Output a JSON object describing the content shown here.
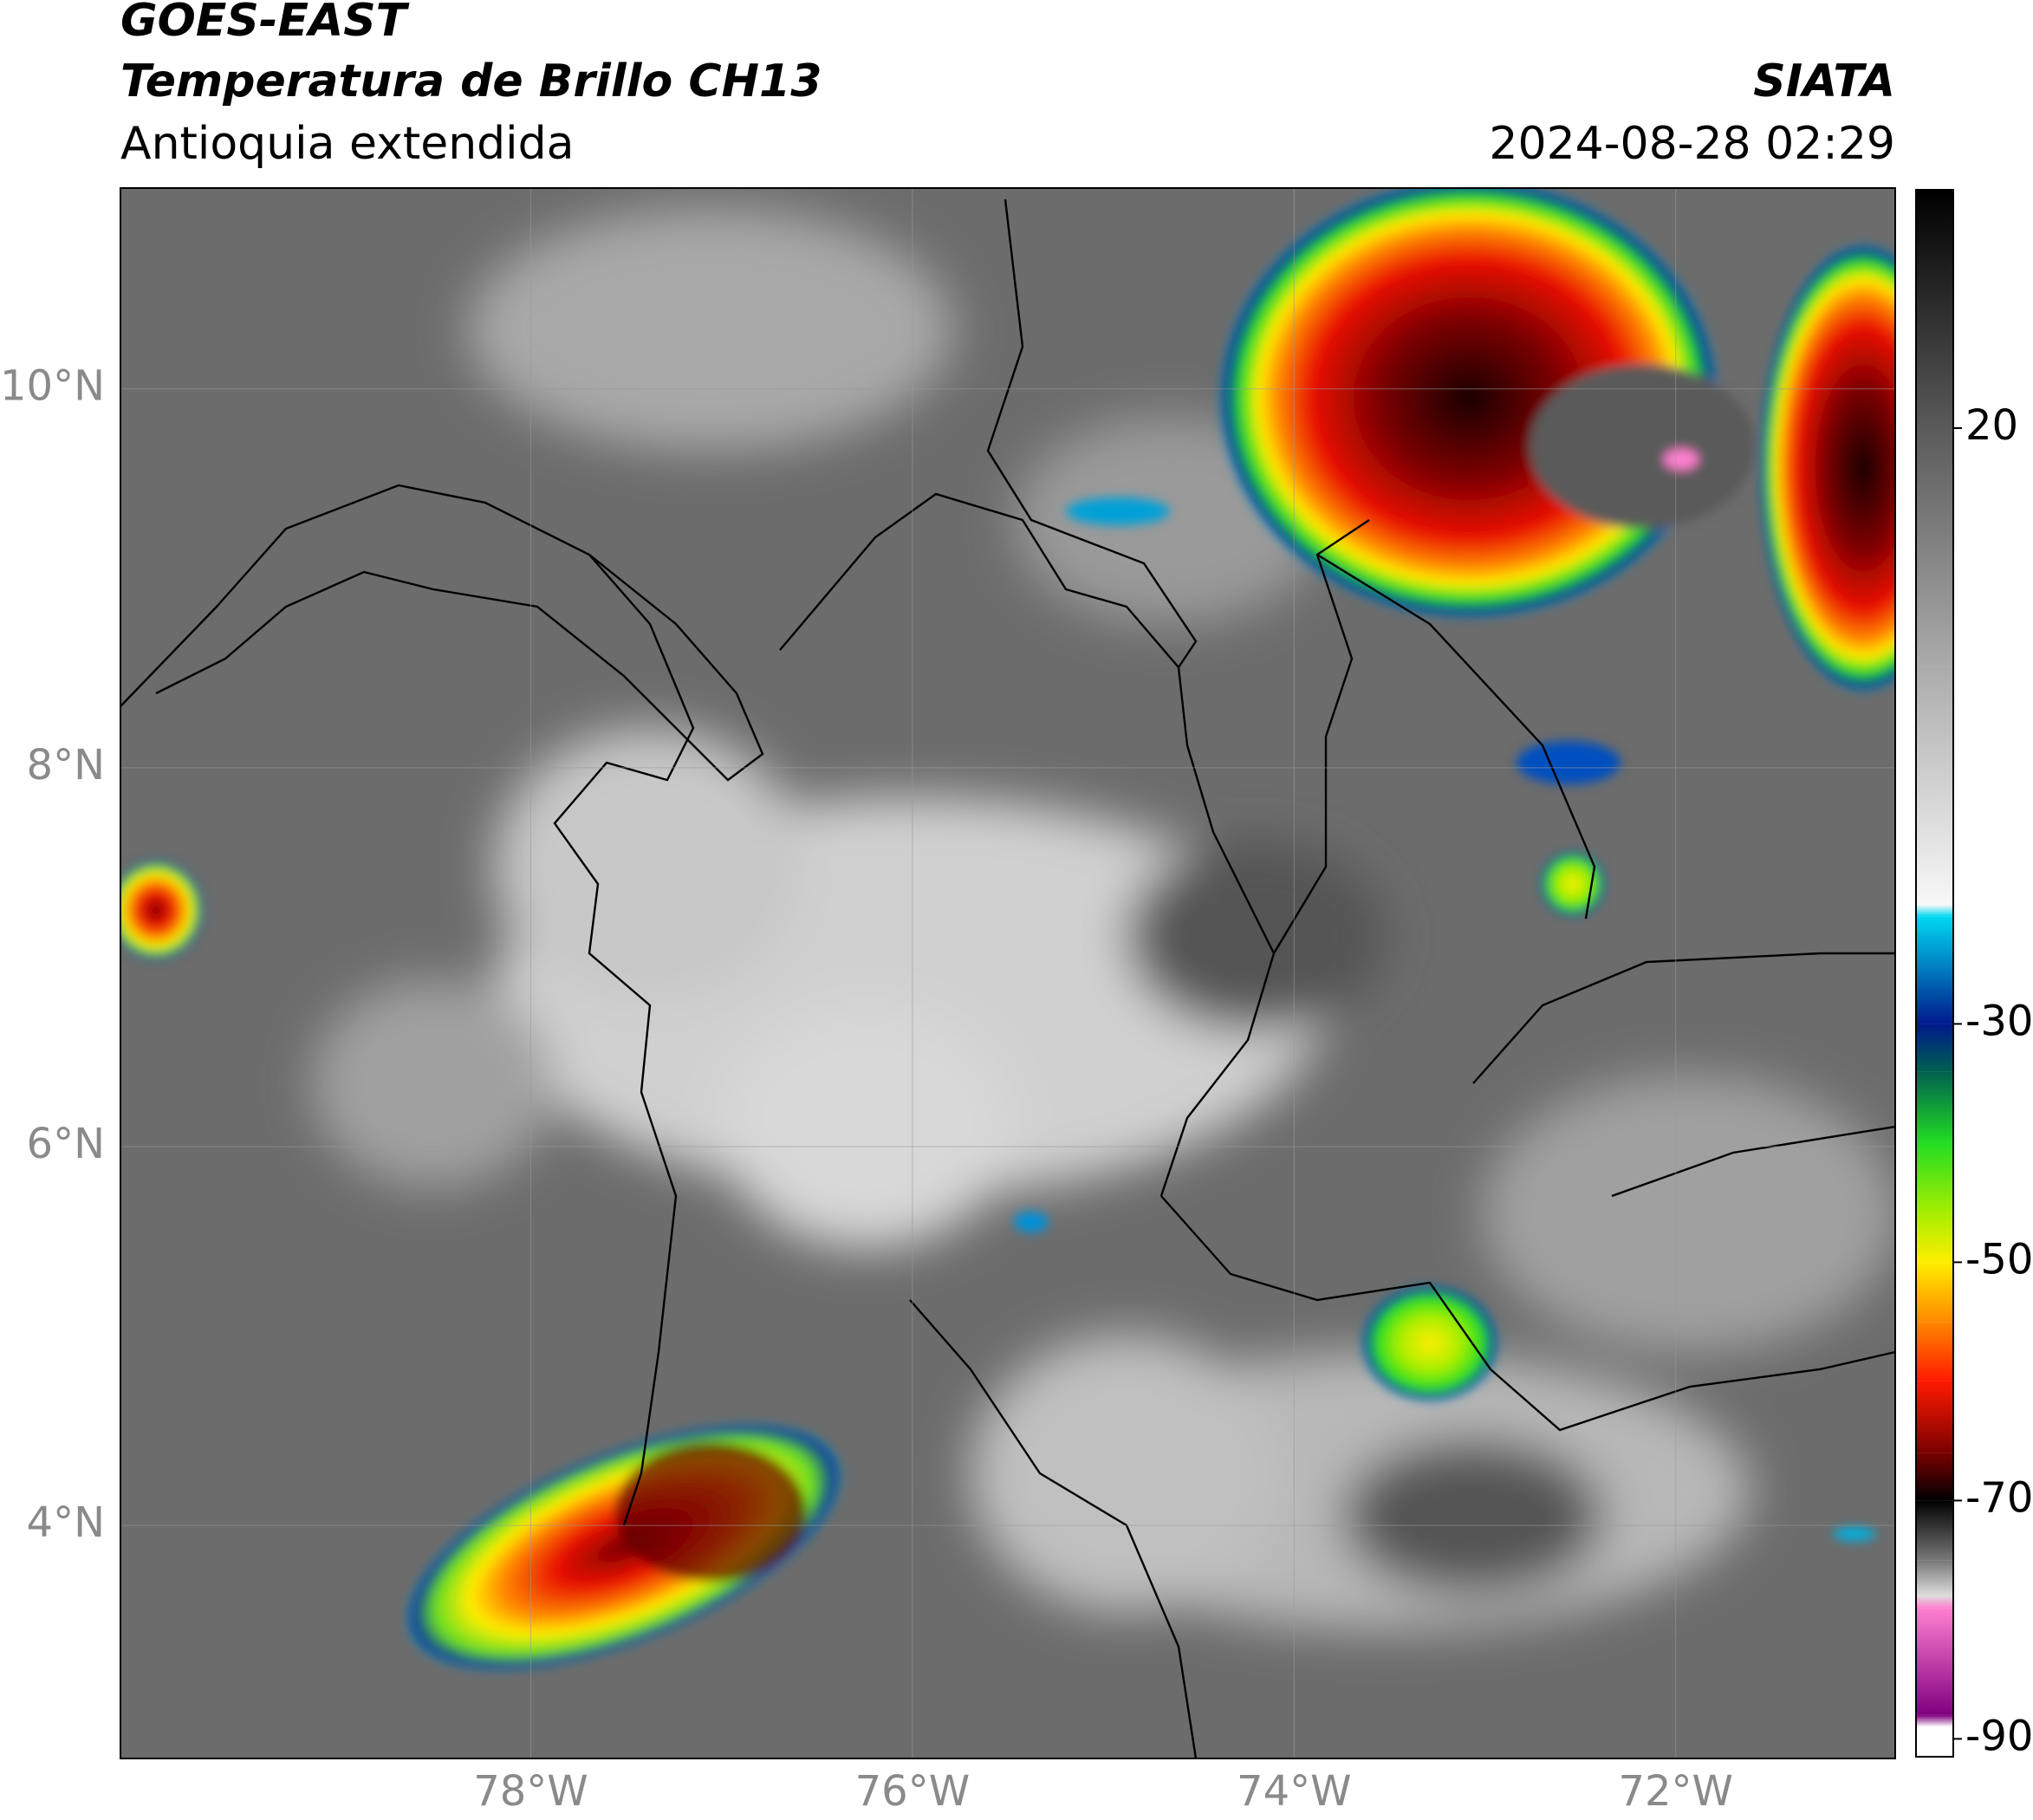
{
  "chart_data": {
    "type": "map",
    "title": "GOES-EAST",
    "subtitle": "Temperatura de Brillo CH13",
    "region": "Antioquia extendida",
    "source": "SIATA",
    "timestamp": "2024-08-28 02:29",
    "xlim": [
      -80.15,
      -70.85
    ],
    "ylim": [
      2.77,
      11.06
    ],
    "xticks": [
      {
        "value": -78,
        "label": "78°W"
      },
      {
        "value": -76,
        "label": "76°W"
      },
      {
        "value": -74,
        "label": "74°W"
      },
      {
        "value": -72,
        "label": "72°W"
      }
    ],
    "yticks": [
      {
        "value": 4,
        "label": "4°N"
      },
      {
        "value": 6,
        "label": "6°N"
      },
      {
        "value": 8,
        "label": "8°N"
      },
      {
        "value": 10,
        "label": "10°N"
      }
    ],
    "grid": true,
    "colorbar": {
      "lim": [
        -91.5,
        40
      ],
      "ticks": [
        20,
        -30,
        -50,
        -70,
        -90
      ],
      "colors": [
        {
          "value": 40,
          "color": "#000000"
        },
        {
          "value": 20,
          "color": "#5a5a5a"
        },
        {
          "value": 0,
          "color": "#ababab"
        },
        {
          "value": -20,
          "color": "#f8f8f8"
        },
        {
          "value": -21,
          "color": "#00d8f0"
        },
        {
          "value": -30,
          "color": "#001a8c"
        },
        {
          "value": -34,
          "color": "#006050"
        },
        {
          "value": -40,
          "color": "#22dd22"
        },
        {
          "value": -46,
          "color": "#aaee00"
        },
        {
          "value": -50,
          "color": "#ffee00"
        },
        {
          "value": -55,
          "color": "#ff8800"
        },
        {
          "value": -60,
          "color": "#ff1a00"
        },
        {
          "value": -66,
          "color": "#7a0000"
        },
        {
          "value": -70,
          "color": "#000000"
        },
        {
          "value": -75,
          "color": "#777777"
        },
        {
          "value": -78,
          "color": "#dddddd"
        },
        {
          "value": -79,
          "color": "#ff80d0"
        },
        {
          "value": -88,
          "color": "#800080"
        },
        {
          "value": -89,
          "color": "#ffffff"
        },
        {
          "value": -91.5,
          "color": "#ffffff"
        }
      ]
    }
  }
}
